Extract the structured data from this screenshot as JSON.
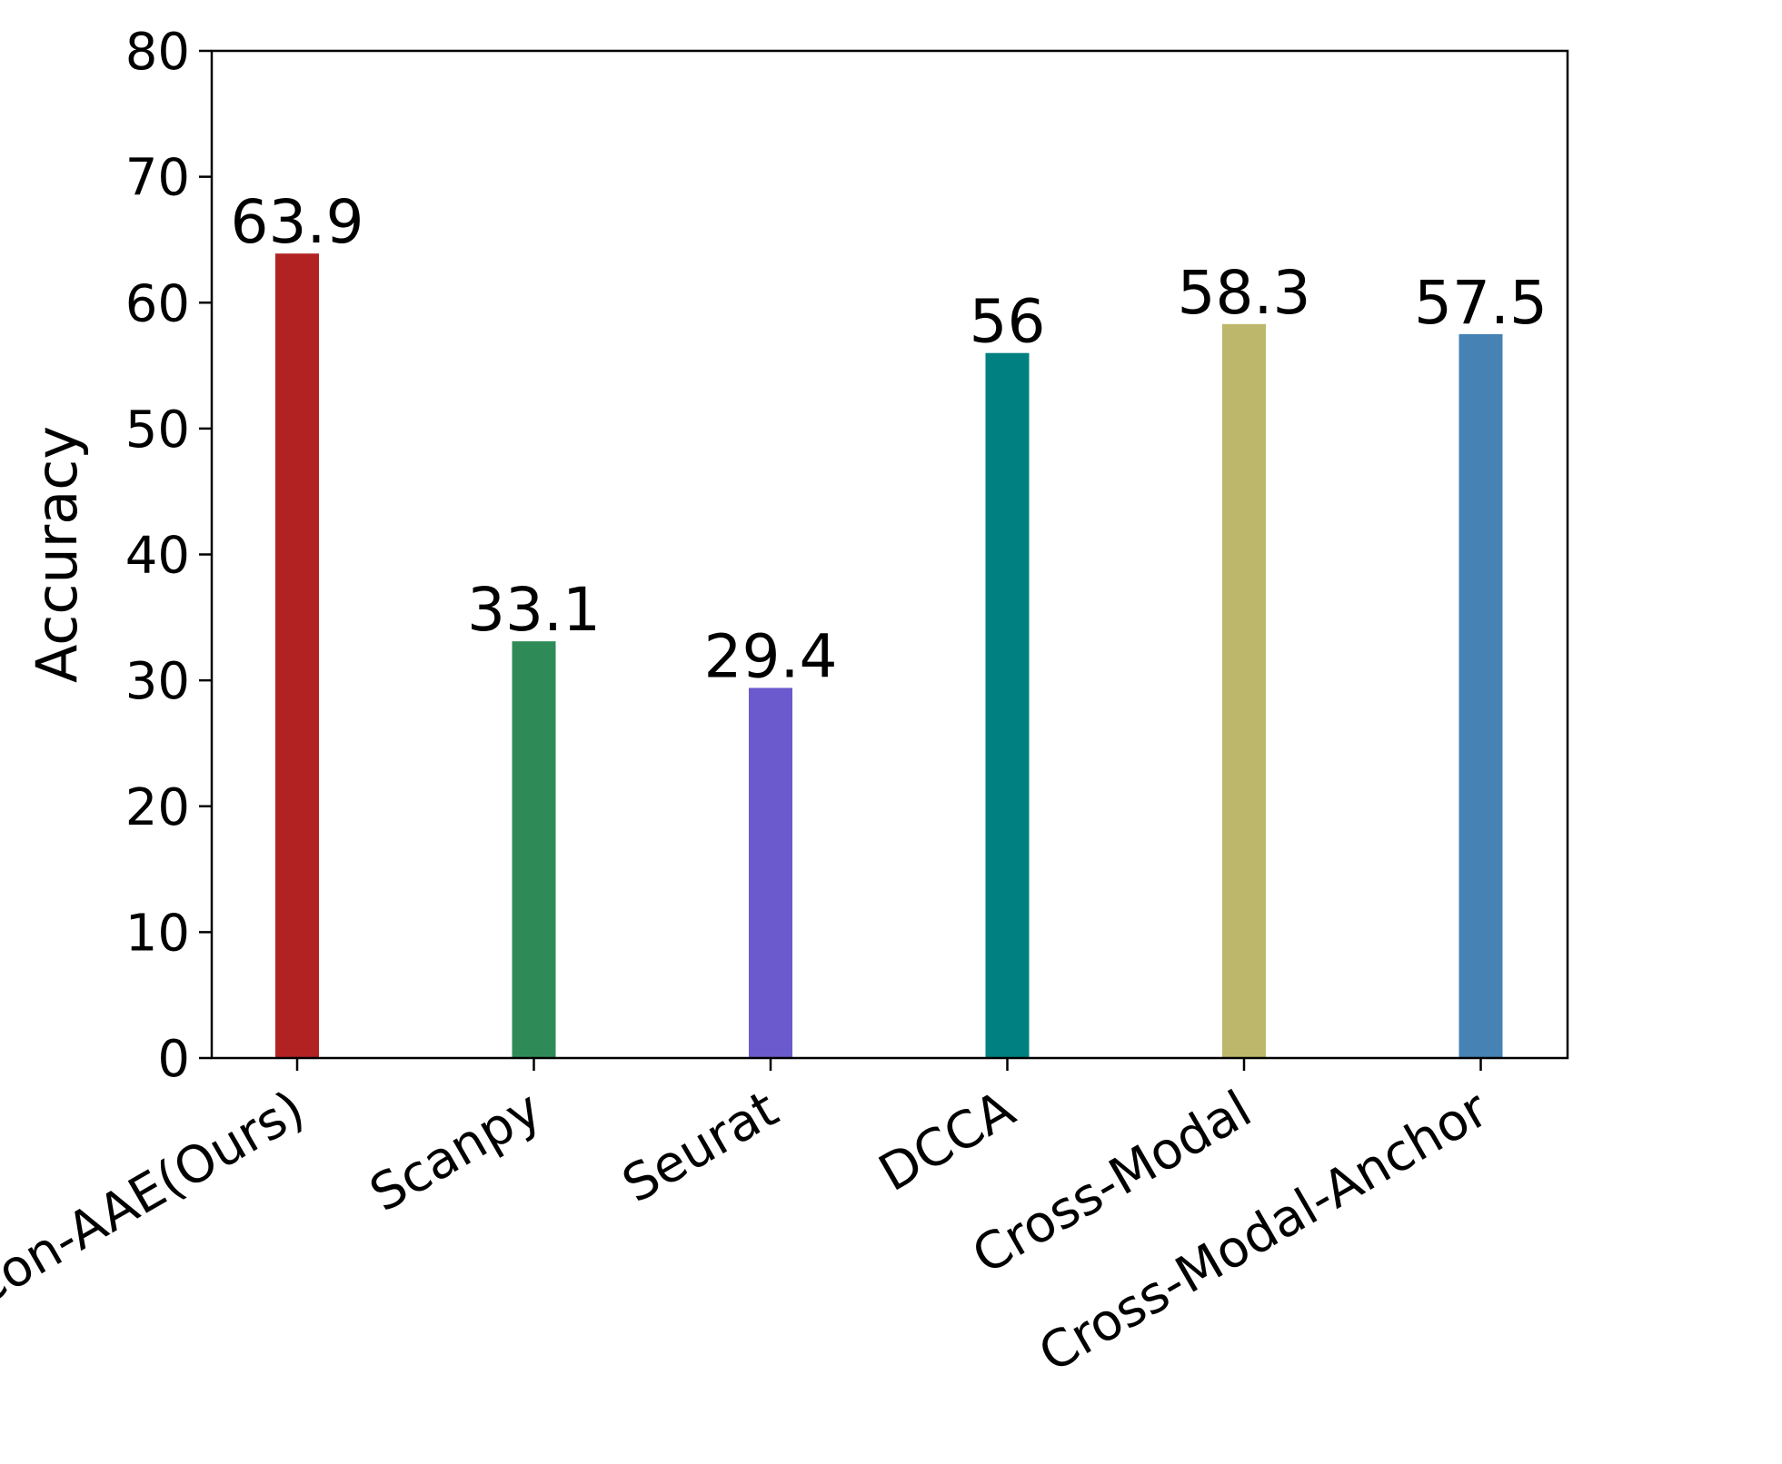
{
  "chart_data": {
    "type": "bar",
    "title": "",
    "xlabel": "",
    "ylabel": "Accuracy",
    "ylim": [
      0,
      80
    ],
    "yticks": [
      0,
      10,
      20,
      30,
      40,
      50,
      60,
      70,
      80
    ],
    "categories": [
      "Con-AAE(Ours)",
      "Scanpy",
      "Seurat",
      "DCCA",
      "Cross-Modal",
      "Cross-Modal-Anchor"
    ],
    "values": [
      63.9,
      33.1,
      29.4,
      56,
      58.3,
      57.5
    ],
    "value_labels": [
      "63.9",
      "33.1",
      "29.4",
      "56",
      "58.3",
      "57.5"
    ],
    "colors": [
      "#b22222",
      "#2e8b57",
      "#6a5acd",
      "#008080",
      "#bdb76b",
      "#4682b4"
    ],
    "grid": false,
    "legend": "none",
    "xtick_rotation_deg": -30
  }
}
